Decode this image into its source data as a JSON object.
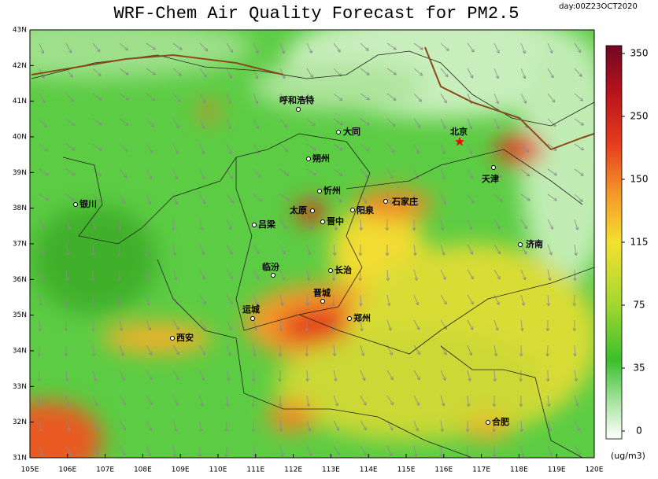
{
  "title": "WRF-Chem Air Quality Forecast for PM2.5",
  "day": "day:00Z23OCT2020",
  "lat_labels": [
    "43N",
    "42N",
    "41N",
    "40N",
    "39N",
    "38N",
    "37N",
    "36N",
    "35N",
    "34N",
    "33N",
    "32N",
    "31N"
  ],
  "lon_labels": [
    "105E",
    "106E",
    "107E",
    "108E",
    "109E",
    "110E",
    "111E",
    "112E",
    "113E",
    "114E",
    "115E",
    "116E",
    "117E",
    "118E",
    "119E",
    "120E"
  ],
  "cities": [
    "呼和浩特",
    "大同",
    "朔州",
    "北京",
    "天津",
    "忻州",
    "石家庄",
    "银川",
    "太原",
    "阳泉",
    "晋中",
    "吕梁",
    "济南",
    "临汾",
    "长治",
    "晋城",
    "运城",
    "郑州",
    "西安",
    "合肥"
  ],
  "colorbar": {
    "ticks": [
      "350",
      "250",
      "150",
      "115",
      "75",
      "35",
      "0"
    ],
    "unit": "(ug/m3)"
  }
}
